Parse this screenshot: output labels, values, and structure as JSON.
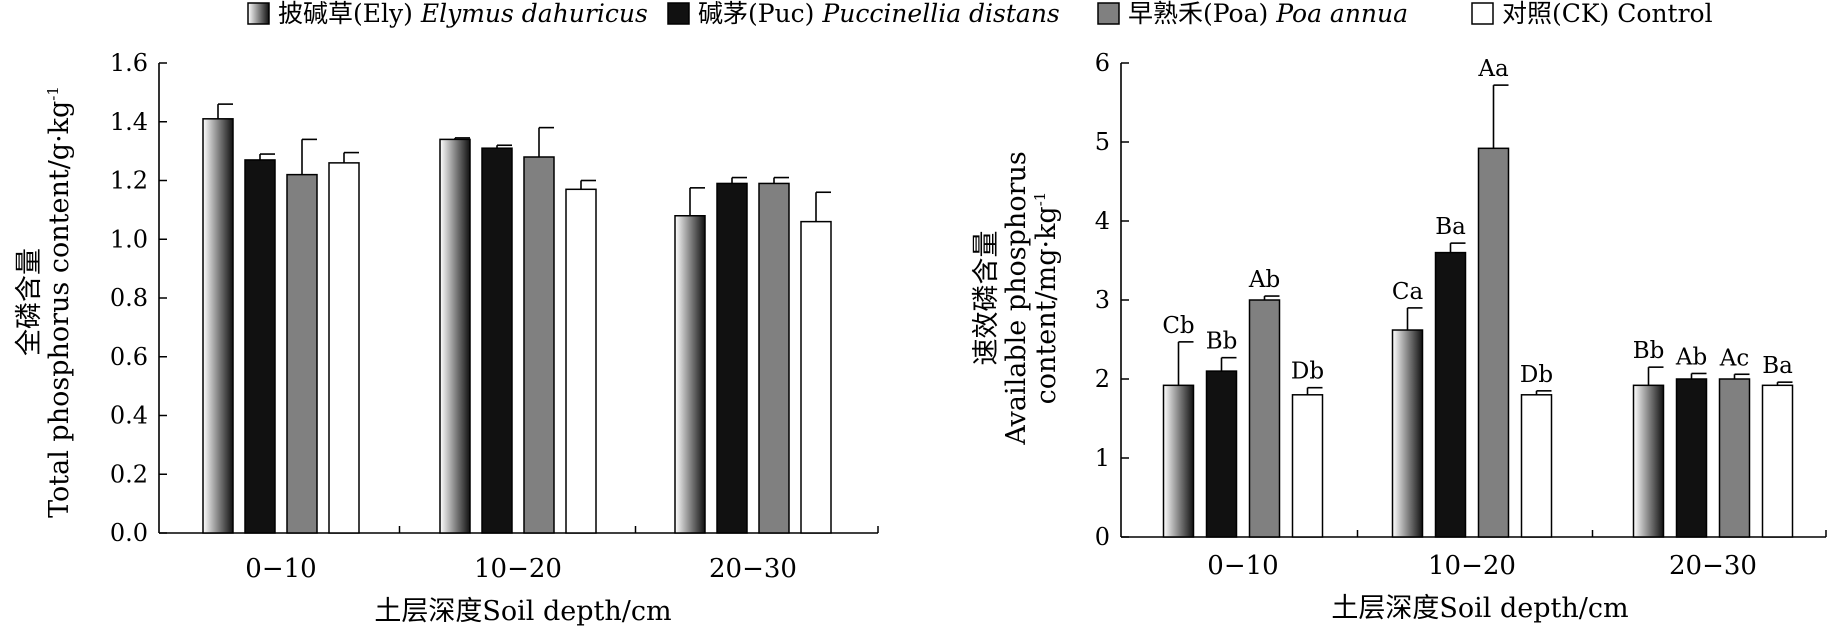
{
  "legend": [
    {
      "label_cn": "披碱草(Ely)",
      "label_sci": "Elymus dahuricus",
      "fill": "gradient"
    },
    {
      "label_cn": "碱茅(Puc)",
      "label_sci": "Puccinellia distans",
      "fill": "#111111"
    },
    {
      "label_cn": "早熟禾(Poa)",
      "label_sci": "Poa annua",
      "fill": "#808080"
    },
    {
      "label_cn": "对照(CK)",
      "label_sci": "Control",
      "fill": "#ffffff"
    }
  ],
  "chart_data": [
    {
      "type": "bar",
      "categories": [
        "0−10",
        "10−20",
        "20−30"
      ],
      "xlabel": "土层深度Soil depth/cm",
      "ylabel_cn": "全磷含量",
      "ylabel_en": "Total phosphorus content/g·kg",
      "ylabel_sup": "-1",
      "ylim": [
        0,
        1.6
      ],
      "yticks": [
        "0.0",
        "0.2",
        "0.4",
        "0.6",
        "0.8",
        "1.0",
        "1.2",
        "1.4",
        "1.6"
      ],
      "series": [
        {
          "name": "披碱草(Ely) Elymus dahuricus",
          "values": [
            1.41,
            1.34,
            1.08
          ],
          "errors": [
            0.05,
            0.005,
            0.095
          ]
        },
        {
          "name": "碱茅(Puc) Puccinellia distans",
          "values": [
            1.27,
            1.31,
            1.19
          ],
          "errors": [
            0.02,
            0.01,
            0.02
          ]
        },
        {
          "name": "早熟禾(Poa) Poa annua",
          "values": [
            1.22,
            1.28,
            1.19
          ],
          "errors": [
            0.12,
            0.1,
            0.02
          ]
        },
        {
          "name": "对照(CK) Control",
          "values": [
            1.26,
            1.17,
            1.06
          ],
          "errors": [
            0.035,
            0.03,
            0.1
          ]
        }
      ]
    },
    {
      "type": "bar",
      "categories": [
        "0−10",
        "10−20",
        "20−30"
      ],
      "xlabel": "土层深度Soil depth/cm",
      "ylabel_cn": "速效磷含量",
      "ylabel_en1": "Available phosphorus",
      "ylabel_en2": "content/mg·kg",
      "ylabel_sup": "-1",
      "ylim": [
        0,
        6
      ],
      "yticks": [
        "0",
        "1",
        "2",
        "3",
        "4",
        "5",
        "6"
      ],
      "series": [
        {
          "name": "披碱草(Ely) Elymus dahuricus",
          "values": [
            1.92,
            2.62,
            1.92
          ],
          "errors": [
            0.55,
            0.28,
            0.23
          ],
          "labels": [
            "Cb",
            "Ca",
            "Bb"
          ]
        },
        {
          "name": "碱茅(Puc) Puccinellia distans",
          "values": [
            2.1,
            3.6,
            2.0
          ],
          "errors": [
            0.17,
            0.12,
            0.07
          ],
          "labels": [
            "Bb",
            "Ba",
            "Ab"
          ]
        },
        {
          "name": "早熟禾(Poa) Poa annua",
          "values": [
            3.0,
            4.92,
            2.0
          ],
          "errors": [
            0.05,
            0.8,
            0.06
          ],
          "labels": [
            "Ab",
            "Aa",
            "Ac"
          ]
        },
        {
          "name": "对照(CK) Control",
          "values": [
            1.8,
            1.8,
            1.92
          ],
          "errors": [
            0.09,
            0.05,
            0.04
          ],
          "labels": [
            "Db",
            "Db",
            "Ba"
          ]
        }
      ]
    }
  ]
}
